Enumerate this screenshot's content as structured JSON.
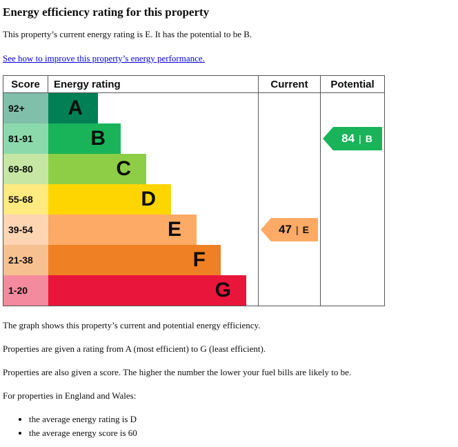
{
  "page": {
    "title": "Energy efficiency rating for this property",
    "intro": "This property’s current energy rating is E. It has the potential to be B.",
    "improve_link": "See how to improve this property’s energy performance.",
    "paragraphs": [
      "The graph shows this property’s current and potential energy efficiency.",
      "Properties are given a rating from A (most efficient) to G (least efficient).",
      "Properties are also given a score. The higher the number the lower your fuel bills are likely to be.",
      "For properties in England and Wales:"
    ],
    "bullets": [
      "the average energy rating is D",
      "the average energy score is 60"
    ]
  },
  "chart_data": {
    "type": "bar",
    "subtype": "epc-energy-rating",
    "headers": {
      "score": "Score",
      "rating": "Energy rating",
      "current": "Current",
      "potential": "Potential"
    },
    "bands": [
      {
        "score": "92+",
        "letter": "A",
        "color": "#008054",
        "score_bg": "#80c0aa"
      },
      {
        "score": "81-91",
        "letter": "B",
        "color": "#19b459",
        "score_bg": "#8cdaac"
      },
      {
        "score": "69-80",
        "letter": "C",
        "color": "#8dce46",
        "score_bg": "#c6e7a3"
      },
      {
        "score": "55-68",
        "letter": "D",
        "color": "#ffd500",
        "score_bg": "#ffea80"
      },
      {
        "score": "39-54",
        "letter": "E",
        "color": "#fcaa65",
        "score_bg": "#fed5b2"
      },
      {
        "score": "21-38",
        "letter": "F",
        "color": "#ef8023",
        "score_bg": "#f7c091"
      },
      {
        "score": "1-20",
        "letter": "G",
        "color": "#e9153b",
        "score_bg": "#f48a9d"
      }
    ],
    "current": {
      "value": "47",
      "divider": "|",
      "letter": "E",
      "color": "#fcaa65",
      "text_color": "#0b0c0c"
    },
    "potential": {
      "value": "84",
      "divider": "|",
      "letter": "B",
      "color": "#19b459",
      "text_color": "#ffffff"
    }
  }
}
